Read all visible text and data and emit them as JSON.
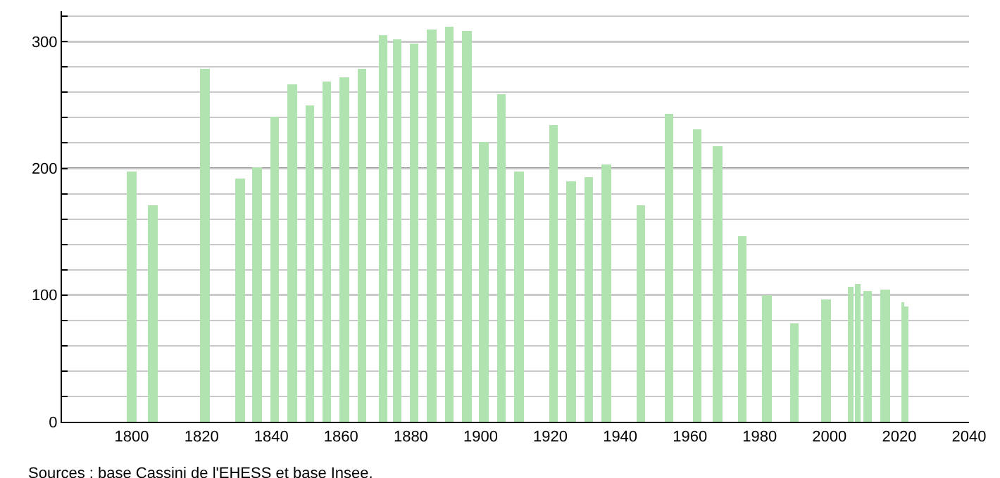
{
  "chart_data": {
    "type": "bar",
    "x": [
      1800,
      1806,
      1821,
      1831,
      1836,
      1841,
      1846,
      1851,
      1856,
      1861,
      1866,
      1872,
      1876,
      1881,
      1886,
      1891,
      1896,
      1901,
      1906,
      1911,
      1921,
      1926,
      1931,
      1936,
      1946,
      1954,
      1962,
      1968,
      1975,
      1982,
      1990,
      1999,
      2006,
      2008,
      2011,
      2016,
      2021,
      2022
    ],
    "values": [
      198,
      171,
      279,
      192,
      201,
      241,
      266,
      250,
      269,
      272,
      279,
      305,
      302,
      299,
      310,
      312,
      309,
      221,
      258,
      198,
      234,
      190,
      193,
      203,
      171,
      243,
      231,
      218,
      147,
      100,
      78,
      96,
      106,
      109,
      103,
      104,
      94,
      91
    ],
    "color": "#b0e3b0",
    "xlim": [
      1780,
      2040
    ],
    "xticks": [
      1800,
      1820,
      1840,
      1860,
      1880,
      1900,
      1920,
      1940,
      1960,
      1980,
      2000,
      2020,
      2040
    ],
    "ylim": [
      0,
      324
    ],
    "yticks": [
      0,
      {
        "value": 20,
        "label": null
      },
      {
        "value": 40,
        "label": null
      },
      {
        "value": 60,
        "label": null
      },
      {
        "value": 80,
        "label": null
      },
      100,
      {
        "value": 120,
        "label": null
      },
      {
        "value": 140,
        "label": null
      },
      {
        "value": 160,
        "label": null
      },
      {
        "value": 180,
        "label": null
      },
      200,
      {
        "value": 220,
        "label": null
      },
      {
        "value": 240,
        "label": null
      },
      {
        "value": 260,
        "label": null
      },
      {
        "value": 280,
        "label": null
      },
      300,
      {
        "value": 320,
        "label": null
      }
    ],
    "grid": "y",
    "annotations": [
      "Sources : base Cassini de l'EHESS et base Insee."
    ]
  }
}
